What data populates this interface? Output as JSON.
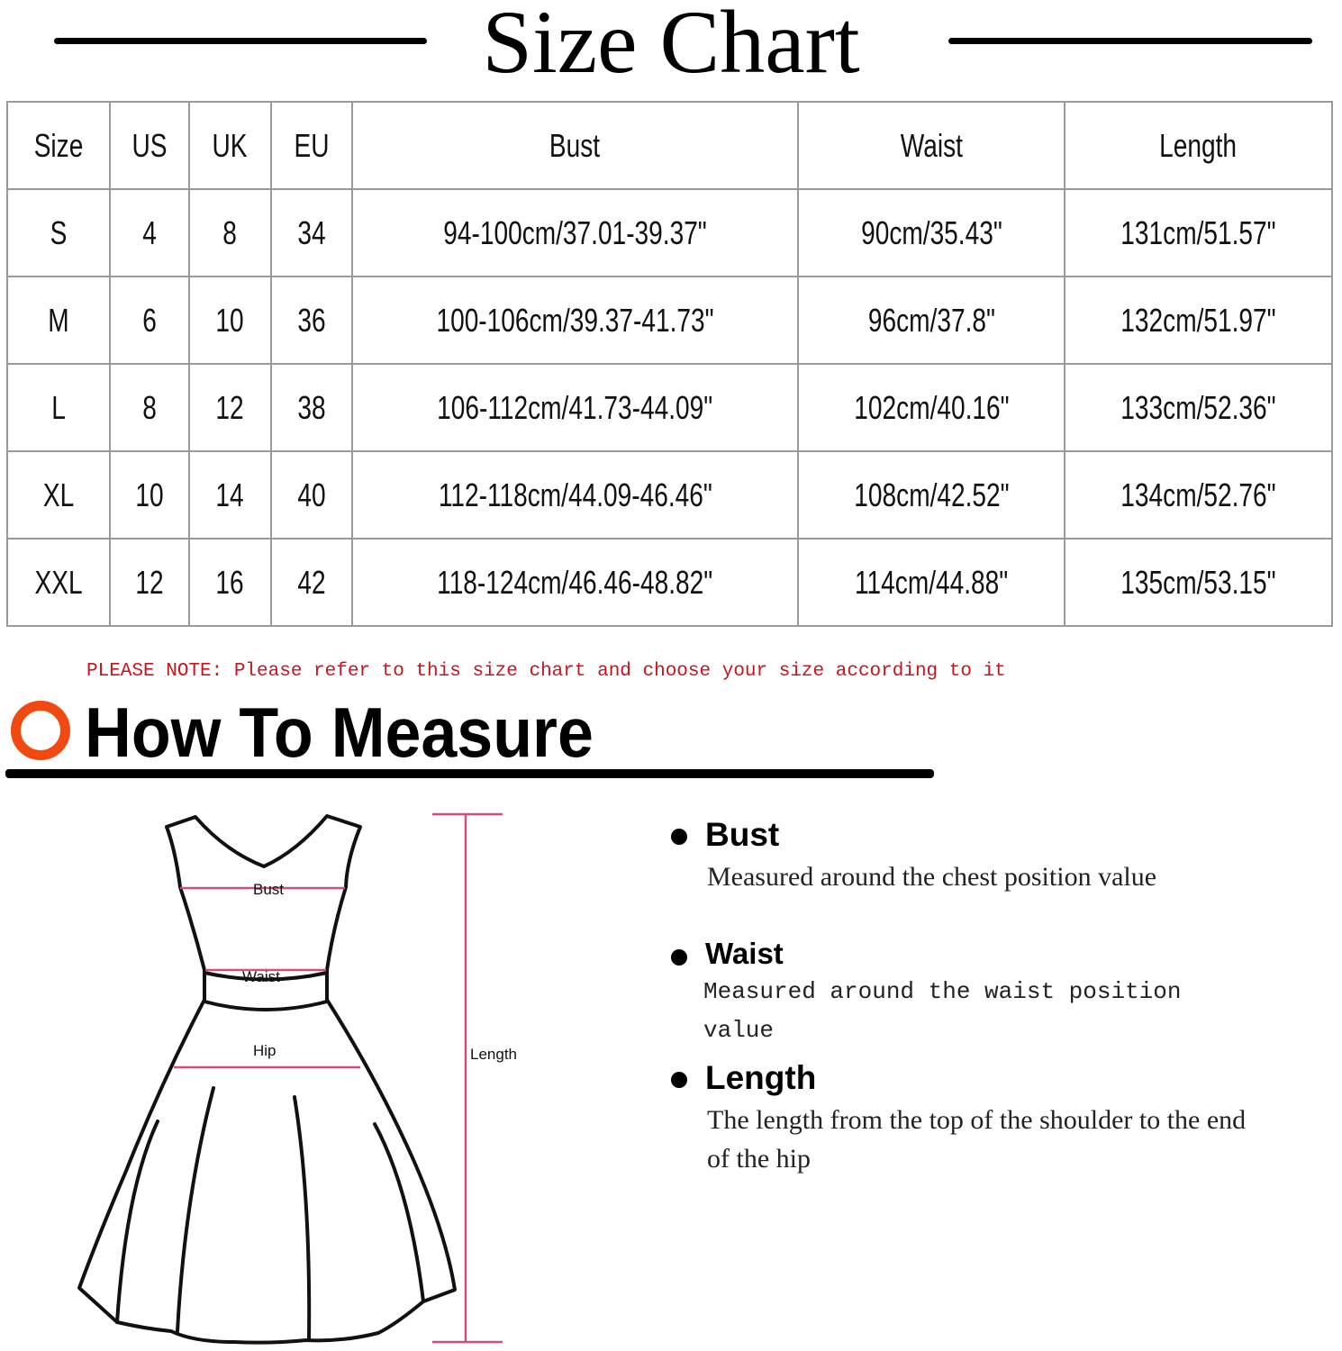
{
  "title": "Size Chart",
  "table": {
    "headers": [
      "Size",
      "US",
      "UK",
      "EU",
      "Bust",
      "Waist",
      "Length"
    ],
    "rows": [
      [
        "S",
        "4",
        "8",
        "34",
        "94-100cm/37.01-39.37\"",
        "90cm/35.43\"",
        "131cm/51.57\""
      ],
      [
        "M",
        "6",
        "10",
        "36",
        "100-106cm/39.37-41.73\"",
        "96cm/37.8\"",
        "132cm/51.97\""
      ],
      [
        "L",
        "8",
        "12",
        "38",
        "106-112cm/41.73-44.09\"",
        "102cm/40.16\"",
        "133cm/52.36\""
      ],
      [
        "XL",
        "10",
        "14",
        "40",
        "112-118cm/44.09-46.46\"",
        "108cm/42.52\"",
        "134cm/52.76\""
      ],
      [
        "XXL",
        "12",
        "16",
        "42",
        "118-124cm/46.46-48.82\"",
        "114cm/44.88\"",
        "135cm/53.15\""
      ]
    ]
  },
  "note": "PLEASE NOTE: Please refer to this size chart and choose your size according to it",
  "measure_title": "How To Measure",
  "diagram": {
    "bust": "Bust",
    "waist": "Waist",
    "hip": "Hip",
    "length": "Length"
  },
  "items": [
    {
      "title": "Bust",
      "desc": "Measured around the chest position value"
    },
    {
      "title": "Waist",
      "desc": "Measured around the waist position value"
    },
    {
      "title": "Length",
      "desc": "The length from the top of the shoulder to the end of the hip"
    }
  ],
  "colors": {
    "accent": "#f04a10",
    "note": "#c8141c",
    "measure_line": "#d0507a"
  }
}
